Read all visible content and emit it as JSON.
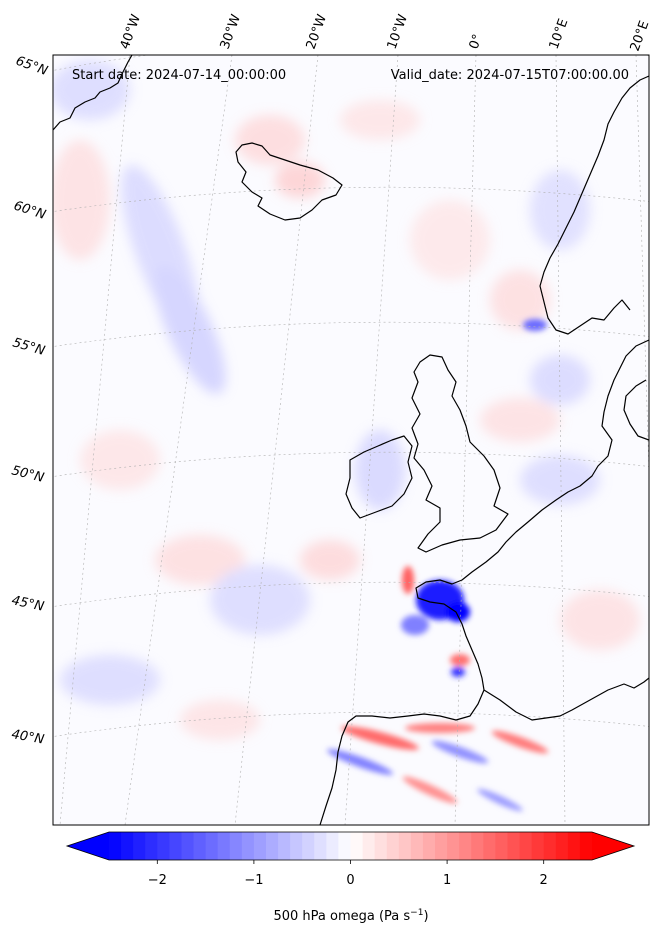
{
  "map": {
    "start_date": "Start date: 2024-07-14_00:00:00",
    "valid_date": "Valid_date: 2024-07-15T07:00:00.00",
    "longitude_labels": [
      "40°W",
      "30°W",
      "20°W",
      "10°W",
      "0°",
      "10°E",
      "20°E"
    ],
    "latitude_labels": [
      "65°N",
      "60°N",
      "55°N",
      "50°N",
      "45°N",
      "40°N"
    ],
    "gridlines": true,
    "coastline_color": "#000000"
  },
  "colorbar": {
    "label_main": "500 hPa omega (Pa s",
    "label_exp": "−1",
    "label_close": ")",
    "ticks": [
      {
        "value": -2,
        "label": "−2"
      },
      {
        "value": -1,
        "label": "−1"
      },
      {
        "value": 0,
        "label": "0"
      },
      {
        "value": 1,
        "label": "1"
      },
      {
        "value": 2,
        "label": "2"
      }
    ],
    "range": [
      -2.5,
      2.5
    ],
    "colormap": "bwr",
    "negative_color": "#0000ff",
    "positive_color": "#ff0000",
    "extend": "both"
  }
}
